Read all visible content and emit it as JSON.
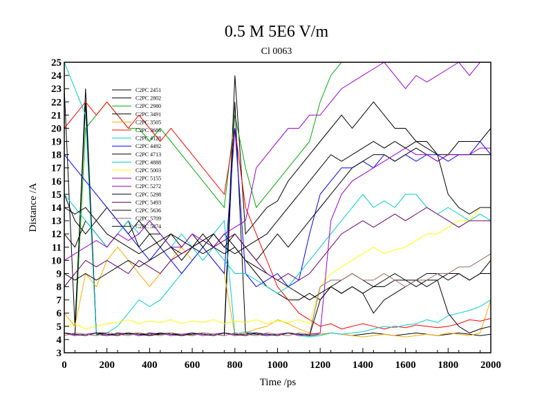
{
  "chart_data": {
    "type": "line",
    "title": "0.5 M 5E6 V/m",
    "subtitle": "Cl 0063",
    "xlabel": "Time /ps",
    "ylabel": "Distance /A",
    "xlim": [
      0,
      2000
    ],
    "ylim": [
      3,
      25
    ],
    "x_ticks": [
      0,
      200,
      400,
      600,
      800,
      1000,
      1200,
      1400,
      1600,
      1800,
      2000
    ],
    "y_ticks": [
      3,
      4,
      5,
      6,
      7,
      8,
      9,
      10,
      11,
      12,
      13,
      14,
      15,
      16,
      17,
      18,
      19,
      20,
      21,
      22,
      23,
      24,
      25
    ],
    "grid": false,
    "legend_position": "top-left",
    "x": [
      0,
      50,
      100,
      150,
      200,
      250,
      300,
      350,
      400,
      450,
      500,
      550,
      600,
      650,
      700,
      750,
      800,
      850,
      900,
      950,
      1000,
      1050,
      1100,
      1150,
      1200,
      1250,
      1300,
      1350,
      1400,
      1450,
      1500,
      1550,
      1600,
      1650,
      1700,
      1750,
      1800,
      1850,
      1900,
      1950,
      2000
    ],
    "series": [
      {
        "name": "C2PC 2451",
        "color": "#000000",
        "values": [
          23,
          5,
          22,
          4.5,
          4.5,
          4.4,
          4.5,
          4.3,
          4.5,
          4.4,
          4.5,
          4.3,
          4.4,
          4.5,
          4.4,
          4.5,
          24,
          12,
          13,
          14,
          14.5,
          16,
          17,
          18,
          19,
          20,
          21,
          20,
          21,
          22,
          21,
          20,
          20,
          19,
          19,
          18,
          18,
          19,
          19,
          19,
          20
        ]
      },
      {
        "name": "C2PC 2802",
        "color": "#000000",
        "values": [
          15,
          13,
          12,
          13,
          14,
          13,
          12,
          13,
          12,
          12,
          11,
          10,
          11,
          12,
          11,
          12,
          11,
          10,
          9,
          8,
          7.5,
          7,
          7,
          7.5,
          7,
          8,
          7.5,
          8,
          7.5,
          8,
          8,
          8.5,
          8.5,
          8.5,
          9,
          9,
          8.5,
          9,
          8.5,
          9,
          10
        ]
      },
      {
        "name": "C2PC 2980",
        "color": "#00aa00",
        "values": [
          4.5,
          4.3,
          20,
          21,
          22,
          21,
          20,
          20,
          19,
          20,
          19,
          18,
          17,
          16,
          15,
          14,
          21,
          17,
          14,
          15,
          16,
          17,
          18,
          19,
          22,
          24,
          25,
          25,
          25,
          25,
          25,
          25,
          25,
          25,
          25,
          25,
          25,
          25,
          25,
          25,
          25
        ]
      },
      {
        "name": "C2PC 3491",
        "color": "#000000",
        "values": [
          4.5,
          4.4,
          23,
          4.4,
          4.3,
          4.5,
          4.4,
          4.5,
          4.3,
          4.4,
          4.5,
          4.4,
          4.3,
          4.5,
          4.4,
          4.3,
          22,
          4.5,
          4.4,
          4.3,
          4.4,
          4.5,
          4.4,
          4.3,
          4.4,
          4.5,
          4.4,
          4.3,
          4.4,
          4.5,
          4.4,
          4.3,
          4.4,
          4.5,
          4.4,
          4.3,
          4.4,
          4.5,
          4.4,
          4.3,
          4.4
        ]
      },
      {
        "name": "C2PC 3505",
        "color": "#ffaa00",
        "values": [
          6,
          5,
          9,
          8,
          10,
          11,
          10,
          9,
          8,
          9,
          10,
          11,
          10,
          11,
          10,
          9,
          4.3,
          4.5,
          4.8,
          5,
          5.5,
          5.2,
          4.8,
          4.5,
          4.4,
          4.5,
          4.4,
          4.3,
          4.2,
          4.3,
          4.4,
          4.3,
          4.2,
          4.3,
          4.4,
          4.3,
          4.5,
          4.4,
          4.3,
          4.5,
          7
        ]
      },
      {
        "name": "C2PC 3686",
        "color": "#ff0000",
        "values": [
          20,
          21,
          22,
          21,
          22,
          21,
          20,
          21,
          20,
          19,
          20,
          19,
          18,
          17,
          16,
          15,
          20,
          14,
          12,
          10,
          8,
          7,
          6,
          5.5,
          5,
          5.2,
          4.8,
          5,
          5.2,
          5,
          4.8,
          5,
          4.9,
          5.1,
          5,
          4.9,
          5,
          5.2,
          5.5,
          5.4,
          5.6
        ]
      },
      {
        "name": "C2PC 4128",
        "color": "#00cccc",
        "values": [
          25,
          23,
          21,
          4.3,
          4.5,
          5,
          6,
          7,
          6.5,
          7,
          8,
          9,
          10,
          11,
          12,
          13,
          4.4,
          4.6,
          4.5,
          4.3,
          4.4,
          4.5,
          4.3,
          4.2,
          4.3,
          4.5,
          4.4,
          4.5,
          4.6,
          4.8,
          5,
          4.9,
          5.1,
          5.2,
          5.5,
          5.3,
          5.8,
          6,
          6.2,
          6.5,
          7
        ]
      },
      {
        "name": "C2PC 4492",
        "color": "#0000ff",
        "values": [
          18,
          17,
          16,
          15,
          14,
          13,
          12,
          11,
          10,
          11,
          10,
          9,
          10,
          11,
          10,
          9,
          20,
          9,
          8,
          8.5,
          9,
          8,
          8.5,
          12,
          15,
          16,
          17,
          17,
          17.5,
          17,
          18,
          17.5,
          18,
          17.5,
          18,
          18,
          17.5,
          18,
          18,
          19,
          18
        ]
      },
      {
        "name": "C2PC 4713",
        "color": "#000000",
        "values": [
          12,
          11,
          13,
          12,
          11,
          12,
          13,
          11,
          12,
          11,
          12,
          11,
          12,
          11,
          12,
          11,
          12,
          11,
          10,
          11,
          12,
          11,
          12,
          13,
          14,
          15,
          16,
          17,
          17.5,
          18,
          18,
          17.5,
          18,
          18.5,
          18,
          17.5,
          18,
          18,
          18,
          18,
          18
        ]
      },
      {
        "name": "C2PC 4888",
        "color": "#00cccc",
        "values": [
          15,
          14,
          13,
          12,
          11,
          12,
          13,
          12,
          13,
          12,
          11,
          12,
          11,
          10,
          11,
          10,
          9,
          9,
          8.5,
          8,
          7.5,
          8,
          9,
          10,
          11,
          12,
          13,
          14,
          15,
          14,
          14.5,
          14,
          15,
          15,
          14,
          13.5,
          14,
          13.5,
          13,
          13.5,
          13
        ]
      },
      {
        "name": "C2PC 5003",
        "color": "#ffff00",
        "values": [
          5,
          5.2,
          4.8,
          5,
          5.2,
          5.3,
          5.5,
          5.2,
          5.4,
          5.3,
          5.5,
          5.2,
          5.4,
          5.3,
          5.5,
          5.2,
          5.4,
          5.3,
          5.5,
          5.2,
          5.4,
          5.3,
          5.5,
          5.2,
          8,
          9,
          9.5,
          10,
          10.5,
          11,
          10.5,
          10.8,
          11,
          11.5,
          12,
          12,
          12.5,
          13,
          13,
          14,
          14
        ]
      },
      {
        "name": "C2PC 5155",
        "color": "#9900cc",
        "values": [
          10,
          10.5,
          11,
          11.5,
          11,
          12,
          11.5,
          12,
          13,
          12,
          11,
          11,
          12,
          11.5,
          11,
          12,
          12.5,
          13,
          17,
          18,
          19,
          20,
          20,
          21,
          21,
          22,
          23,
          23.5,
          24,
          24.5,
          25,
          24,
          23,
          24,
          23.5,
          24,
          24.5,
          25,
          24,
          25,
          25
        ]
      },
      {
        "name": "C2PC 5272",
        "color": "#9900cc",
        "values": [
          4.5,
          4.3,
          4.4,
          4.5,
          4.3,
          4.4,
          4.5,
          4.3,
          4.4,
          4.5,
          4.3,
          4.4,
          4.5,
          4.3,
          4.4,
          4.5,
          4.3,
          4.4,
          4.5,
          4.3,
          4.4,
          4.5,
          4.3,
          4.4,
          4.5,
          13,
          15,
          16,
          16.5,
          17,
          17.5,
          18,
          18.5,
          18,
          18,
          17.5,
          18,
          18,
          18,
          18.5,
          18.5
        ]
      },
      {
        "name": "C2PC 5298",
        "color": "#000000",
        "values": [
          9,
          8.5,
          9,
          8.5,
          9,
          9.5,
          10,
          9.5,
          10,
          10.5,
          11,
          10.5,
          11,
          10.5,
          11,
          10.5,
          11,
          10,
          9.5,
          9,
          8.5,
          8,
          7.5,
          7,
          7.5,
          8,
          8.5,
          9,
          8.5,
          8,
          8.5,
          9,
          8.5,
          8,
          8.5,
          8.5,
          9,
          9,
          8.5,
          9,
          9
        ]
      },
      {
        "name": "C2PC 5493",
        "color": "#660066",
        "values": [
          8,
          9,
          10,
          9.5,
          10,
          9.5,
          9,
          10,
          9.5,
          9,
          10,
          10.5,
          11,
          11.5,
          11,
          11.5,
          12,
          11,
          10,
          9,
          8.5,
          9,
          8.5,
          9,
          10,
          11,
          12,
          12.5,
          13,
          12.5,
          13,
          13.5,
          13,
          13.5,
          14,
          13.5,
          13,
          12.5,
          13,
          13,
          13
        ]
      },
      {
        "name": "C2PC 5636",
        "color": "#000000",
        "values": [
          4.5,
          4.4,
          4.3,
          4.5,
          4.4,
          4.3,
          4.5,
          4.4,
          4.3,
          4.5,
          4.4,
          4.3,
          4.5,
          4.4,
          4.3,
          4.5,
          4.4,
          4.3,
          4.5,
          4.4,
          4.3,
          4.5,
          4.4,
          4.3,
          7,
          8,
          7.5,
          8,
          7.5,
          6,
          7,
          7.5,
          8,
          8.5,
          8,
          8.5,
          6,
          5,
          4.5,
          4.8,
          5
        ]
      },
      {
        "name": "C2PC 5709",
        "color": "#996666",
        "values": [
          4.3,
          4.5,
          4.4,
          4.3,
          4.5,
          4.4,
          4.3,
          4.5,
          4.4,
          4.3,
          4.5,
          4.4,
          4.3,
          4.5,
          4.4,
          4.3,
          4.5,
          4.4,
          4.3,
          4.5,
          4.4,
          4.3,
          4.5,
          4.4,
          8,
          8.5,
          8.5,
          9,
          8.5,
          8.5,
          9,
          8.5,
          8,
          8.5,
          8.5,
          9,
          9,
          9.5,
          9.5,
          10,
          10.5
        ]
      },
      {
        "name": "C2PC 5874",
        "color": "#000000",
        "values": [
          14,
          13.5,
          14,
          13,
          12,
          11.5,
          11,
          10.5,
          11,
          11.5,
          12,
          11.5,
          11,
          11.5,
          12,
          11,
          10.5,
          11,
          11.5,
          12,
          13,
          14,
          15,
          16,
          17,
          18,
          17.5,
          18,
          18.5,
          19,
          18.5,
          19,
          18.5,
          19,
          18.5,
          18,
          15,
          14,
          13.5,
          14,
          14
        ]
      }
    ]
  }
}
